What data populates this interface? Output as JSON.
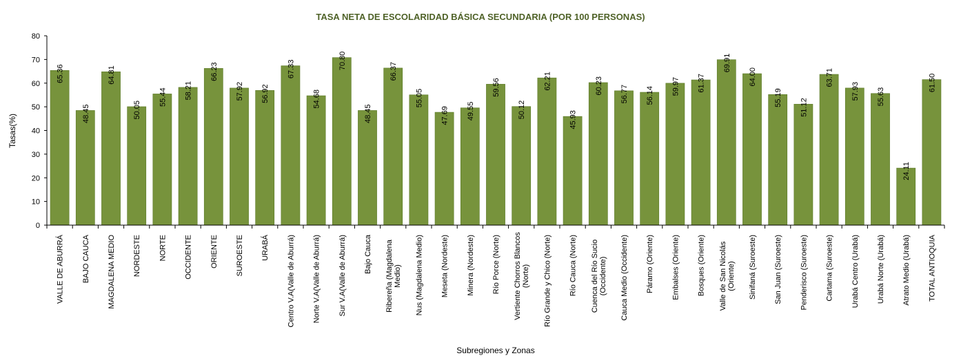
{
  "chart_data": {
    "type": "bar",
    "title": "TASA NETA DE ESCOLARIDAD BÁSICA SECUNDARIA (POR 100 PERSONAS)",
    "xlabel": "Subregiones y Zonas",
    "ylabel": "Tasas(%)",
    "ylim": [
      0,
      80
    ],
    "yticks": [
      "0",
      "10",
      "20",
      "30",
      "40",
      "50",
      "60",
      "70",
      "80"
    ],
    "grid": false,
    "legend": "none",
    "bar_color": "#77933c",
    "categories": [
      [
        "VALLE DE ABURRÁ"
      ],
      [
        "BAJO CAUCA"
      ],
      [
        "MAGDALENA MEDIO"
      ],
      [
        "NORDESTE"
      ],
      [
        "NORTE"
      ],
      [
        "OCCIDENTE"
      ],
      [
        "ORIENTE"
      ],
      [
        "SUROESTE"
      ],
      [
        "URABÁ"
      ],
      [
        "Centro V.A(Valle de Aburrá)"
      ],
      [
        "Norte V.A(Valle de Aburrá)"
      ],
      [
        "Sur V.A(Valle de Aburrá)"
      ],
      [
        "Bajo Cauca"
      ],
      [
        "Ribereña  (Magdalena",
        "Medio)"
      ],
      [
        "Nus  (Magdalena Medio)"
      ],
      [
        "Meseta  (Nordeste)"
      ],
      [
        "Minera  (Nordeste)"
      ],
      [
        "Río Porce   (Norte)"
      ],
      [
        "Vertiente Chorros Blancos",
        "(Norte)"
      ],
      [
        "Río Grande y Chico  (Norte)"
      ],
      [
        "Río Cauca  (Norte)"
      ],
      [
        "Cuenca del Río Sucio",
        "(Occidente)"
      ],
      [
        "Cauca Medio  (Occidente)"
      ],
      [
        "Páramo   (Oriente)"
      ],
      [
        "Embalses  (Oriente)"
      ],
      [
        "Bosques  (Oriente)"
      ],
      [
        "Valle de San Nicolás",
        "(Oriente)"
      ],
      [
        "Sinifaná  (Suroeste)"
      ],
      [
        "San Juan  (Suroeste)"
      ],
      [
        "Penderisco  (Suroeste)"
      ],
      [
        "Cartama  (Suroeste)"
      ],
      [
        "Urabá Centro  (Urabá)"
      ],
      [
        "Urabá Norte  (Urabá)"
      ],
      [
        "Atrato Medio  (Urabá)"
      ],
      [
        "TOTAL ANTIOQUIA"
      ]
    ],
    "values": [
      65.36,
      48.45,
      64.81,
      50.05,
      55.44,
      58.21,
      66.23,
      57.92,
      56.92,
      67.33,
      54.68,
      70.8,
      48.45,
      66.37,
      55.05,
      47.69,
      49.55,
      59.56,
      50.12,
      62.21,
      45.93,
      60.23,
      56.77,
      56.14,
      59.97,
      61.37,
      69.91,
      64.0,
      55.19,
      51.12,
      63.71,
      57.93,
      55.63,
      24.11,
      61.5
    ],
    "labels": [
      "65.36",
      "48.45",
      "64.81",
      "50.05",
      "55.44",
      "58.21",
      "66.23",
      "57.92",
      "56.92",
      "67.33",
      "54.68",
      "70.80",
      "48.45",
      "66.37",
      "55.05",
      "47.69",
      "49.55",
      "59.56",
      "50.12",
      "62.21",
      "45.93",
      "60.23",
      "56.77",
      "56.14",
      "59.97",
      "61.37",
      "69.91",
      "64.00",
      "55.19",
      "51.12",
      "63.71",
      "57.93",
      "55.63",
      "24.11",
      "61.50"
    ]
  }
}
